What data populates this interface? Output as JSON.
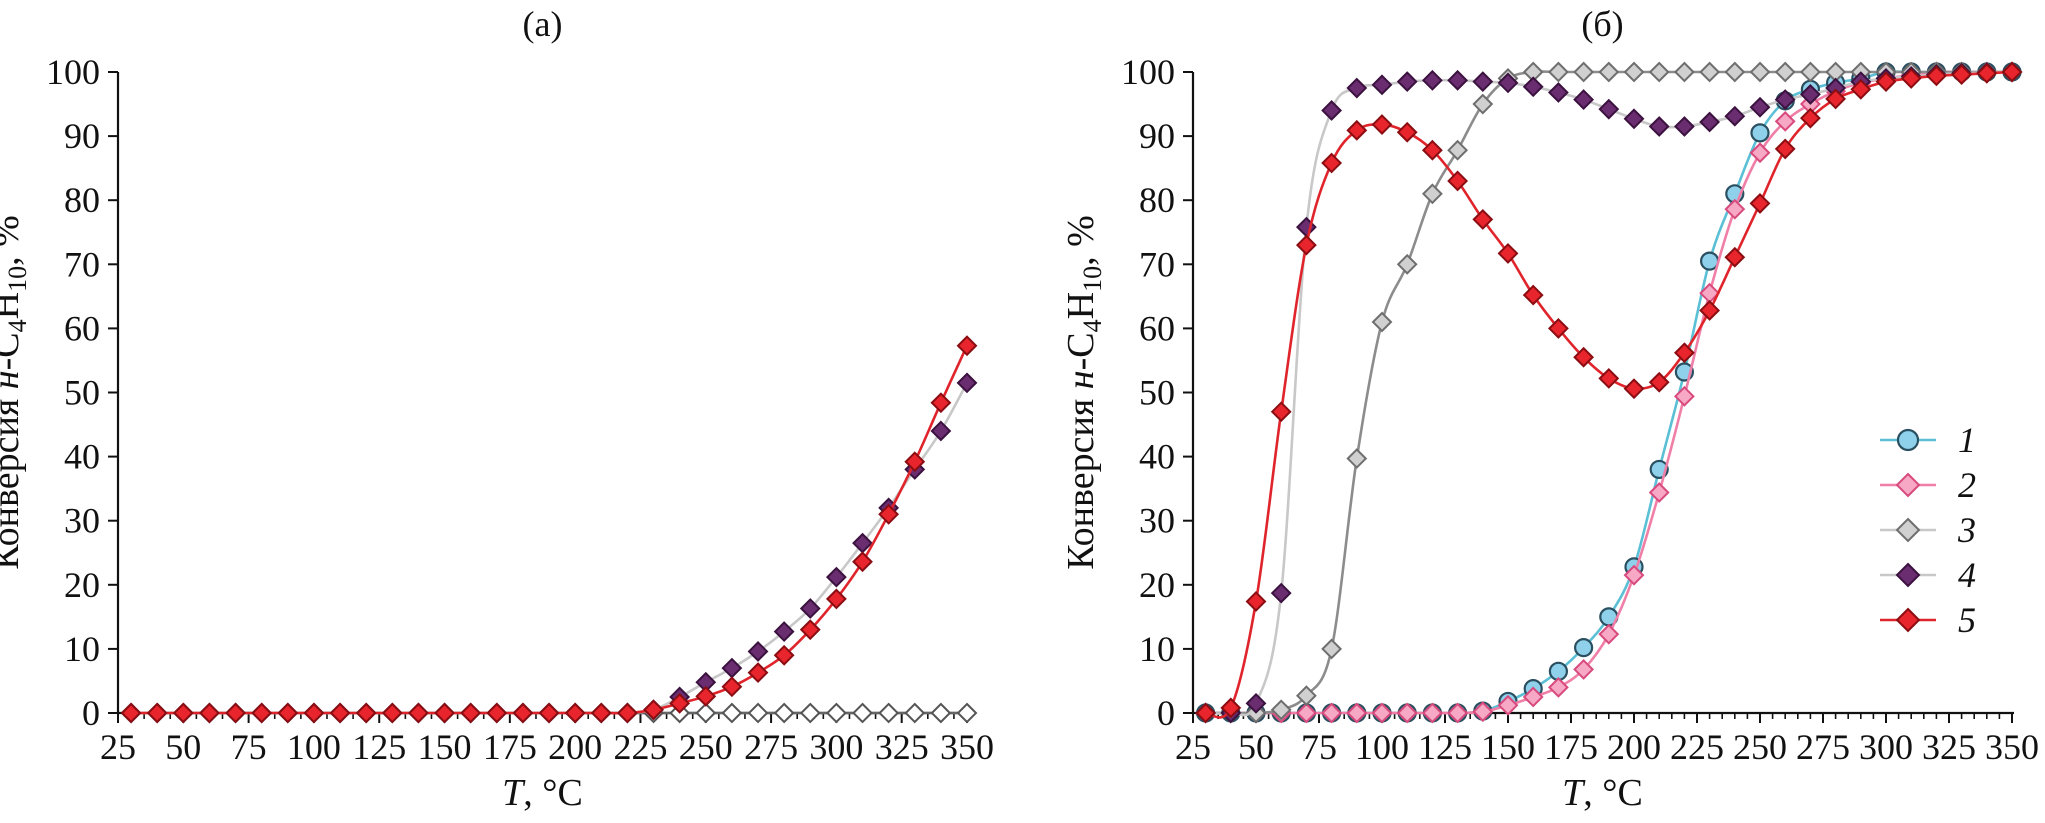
{
  "chart_data": [
    {
      "id": "a",
      "type": "line",
      "title": "(a)",
      "xlabel": "T, °C",
      "ylabel": "Конверсия н-C4H10, %",
      "xlim": [
        25,
        350
      ],
      "ylim": [
        0,
        100
      ],
      "xticks": [
        "25",
        "50",
        "75",
        "100",
        "125",
        "150",
        "175",
        "200",
        "225",
        "250",
        "275",
        "300",
        "325",
        "350"
      ],
      "yticks": [
        "0",
        "10",
        "20",
        "30",
        "40",
        "50",
        "60",
        "70",
        "80",
        "90",
        "100"
      ],
      "x": [
        30,
        40,
        50,
        60,
        70,
        80,
        90,
        100,
        110,
        120,
        130,
        140,
        150,
        160,
        170,
        180,
        190,
        200,
        210,
        220,
        230,
        240,
        250,
        260,
        270,
        280,
        290,
        300,
        310,
        320,
        330,
        340,
        350
      ],
      "series": [
        {
          "name": "3",
          "values": [
            0,
            0,
            0,
            0,
            0,
            0,
            0,
            0,
            0,
            0,
            0,
            0,
            0,
            0,
            0,
            0,
            0,
            0,
            0,
            0,
            0,
            0,
            0,
            0,
            0,
            0,
            0,
            0,
            0,
            0,
            0,
            0,
            0
          ]
        },
        {
          "name": "4",
          "values": [
            0,
            0,
            0,
            0,
            0,
            0,
            0,
            0,
            0,
            0,
            0,
            0,
            0,
            0,
            0,
            0,
            0,
            0,
            0,
            0,
            0.5,
            2.5,
            4.8,
            7,
            9.6,
            12.7,
            16.3,
            21.2,
            26.5,
            32,
            38,
            44,
            51.5
          ]
        },
        {
          "name": "5",
          "values": [
            0,
            0,
            0,
            0,
            0,
            0,
            0,
            0,
            0,
            0,
            0,
            0,
            0,
            0,
            0,
            0,
            0,
            0,
            0,
            0,
            0.5,
            1.5,
            2.6,
            4.1,
            6.3,
            9,
            13,
            17.8,
            23.6,
            31,
            39.2,
            48.4,
            57.3
          ]
        }
      ]
    },
    {
      "id": "b",
      "type": "line",
      "title": "(б)",
      "xlabel": "T, °C",
      "ylabel": "Конверсия н-C4H10, %",
      "xlim": [
        25,
        350
      ],
      "ylim": [
        0,
        100
      ],
      "xticks": [
        "25",
        "50",
        "75",
        "100",
        "125",
        "150",
        "175",
        "200",
        "225",
        "250",
        "275",
        "300",
        "325",
        "350"
      ],
      "yticks": [
        "0",
        "10",
        "20",
        "30",
        "40",
        "50",
        "60",
        "70",
        "80",
        "90",
        "100"
      ],
      "x": [
        30,
        40,
        50,
        60,
        70,
        80,
        90,
        100,
        110,
        120,
        130,
        140,
        150,
        160,
        170,
        180,
        190,
        200,
        210,
        220,
        230,
        240,
        250,
        260,
        270,
        280,
        290,
        300,
        310,
        320,
        330,
        340,
        350
      ],
      "series": [
        {
          "name": "1",
          "values": [
            0,
            0,
            0,
            0,
            0,
            0,
            0,
            0,
            0,
            0,
            0,
            0.3,
            1.8,
            3.8,
            6.5,
            10.2,
            15,
            22.8,
            38,
            53.2,
            70.5,
            81,
            90.5,
            95.5,
            97.3,
            98.3,
            99,
            100,
            100,
            100,
            100,
            100,
            100
          ]
        },
        {
          "name": "2",
          "values": [
            0,
            0,
            0,
            0,
            0,
            0,
            0,
            0,
            0,
            0,
            0,
            0.2,
            1.2,
            2.5,
            4,
            6.8,
            12.3,
            21.5,
            34.4,
            49.4,
            65.5,
            78.6,
            87.4,
            92.3,
            95,
            97,
            98.3,
            99,
            99.5,
            100,
            100,
            100,
            100
          ]
        },
        {
          "name": "3",
          "values": [
            0,
            0,
            0,
            0.5,
            2.7,
            10,
            39.7,
            61,
            70,
            81,
            87.8,
            95,
            99,
            100,
            100,
            100,
            100,
            100,
            100,
            100,
            100,
            100,
            100,
            100,
            100,
            100,
            100,
            100,
            100,
            100,
            100,
            100,
            100
          ]
        },
        {
          "name": "4",
          "values": [
            0,
            0,
            1.5,
            18.7,
            75.8,
            94,
            97.5,
            98,
            98.5,
            98.7,
            98.7,
            98.5,
            98.3,
            97.7,
            96.8,
            95.7,
            94.2,
            92.7,
            91.5,
            91.5,
            92.2,
            93.1,
            94.5,
            95.7,
            96.5,
            97.5,
            98.5,
            99,
            99.3,
            99.6,
            99.8,
            99.9,
            100
          ]
        },
        {
          "name": "5",
          "values": [
            0,
            0.8,
            17.4,
            47,
            73,
            85.8,
            90.9,
            91.8,
            90.6,
            87.8,
            83,
            77,
            71.7,
            65.2,
            60,
            55.5,
            52.2,
            50.6,
            51.6,
            56.2,
            62.8,
            71.1,
            79.5,
            88,
            92.8,
            95.8,
            97.3,
            98.5,
            99,
            99.4,
            99.6,
            99.8,
            100
          ]
        }
      ],
      "legend": {
        "placement": "right-center",
        "entries": [
          "1",
          "2",
          "3",
          "4",
          "5"
        ]
      }
    }
  ],
  "styles": {
    "1": {
      "color": "#5bc0d6",
      "fill": "#8fd0ea",
      "stroke": "#2a4f60",
      "marker": "circle"
    },
    "2": {
      "color": "#f07fa8",
      "fill": "#f7a8c4",
      "stroke": "#d84a7d",
      "marker": "diamond"
    },
    "3": {
      "color": "#b4b4b4",
      "fill": "#d0d0d0",
      "stroke": "#6e6e6e",
      "marker": "diamond"
    },
    "4": {
      "color": "#c8c8c8",
      "fill": "#6a2d70",
      "stroke": "#3b123f",
      "marker": "diamond"
    },
    "5": {
      "color": "#e0242c",
      "fill": "#e8242c",
      "stroke": "#8a0d12",
      "marker": "diamond"
    },
    "3a": {
      "color": "#666666",
      "fill": "#ffffff",
      "stroke": "#555555",
      "marker": "diamond"
    },
    "3b_line": "#8c8c8c"
  }
}
